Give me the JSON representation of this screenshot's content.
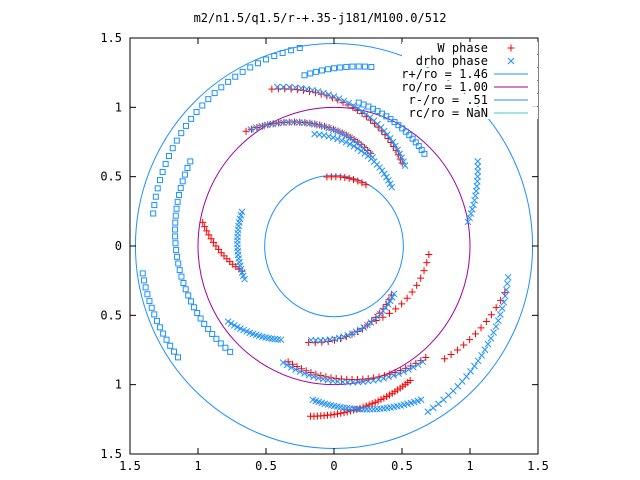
{
  "chart_data": {
    "type": "scatter",
    "title": "m2/n1.5/q1.5/r-+.35-j181/M100.0/512",
    "xlim": [
      -1.5,
      1.5
    ],
    "ylim": [
      -1.5,
      1.5
    ],
    "x_ticks": [
      -1.5,
      -1,
      -0.5,
      0,
      0.5,
      1,
      1.5
    ],
    "y_ticks": [
      -1.5,
      -1,
      -0.5,
      0,
      0.5,
      1,
      1.5
    ],
    "x_tick_labels": [
      "1.5",
      "1",
      "0.5",
      "0",
      "0.5",
      "1",
      "1.5"
    ],
    "y_tick_labels": [
      "1.5",
      "1",
      "0.5",
      "0",
      "0.5",
      "1",
      "1.5"
    ],
    "grid": false,
    "legend_position": "top-right",
    "series": [
      {
        "name": "W phase",
        "kind": "points",
        "marker": "plus",
        "color": "#ff0000",
        "spirals": [
          {
            "r0": 1.22,
            "r1": 0.78,
            "a0": 112,
            "a1": 50,
            "n": 30
          },
          {
            "r0": 1.05,
            "r1": 0.72,
            "a0": 128,
            "a1": 68,
            "n": 28
          },
          {
            "r0": 0.5,
            "r1": 0.5,
            "a0": 96,
            "a1": 62,
            "n": 10
          },
          {
            "r0": 0.98,
            "r1": 0.7,
            "a0": 170,
            "a1": 195,
            "n": 16
          },
          {
            "r0": 1.24,
            "r1": 1.12,
            "a0": 262,
            "a1": 300,
            "n": 34
          },
          {
            "r0": 0.9,
            "r1": 1.05,
            "a0": 248,
            "a1": 310,
            "n": 28
          },
          {
            "r0": 0.72,
            "r1": 0.55,
            "a0": 255,
            "a1": 320,
            "n": 18
          },
          {
            "r0": 0.62,
            "r1": 0.7,
            "a0": 300,
            "a1": 355,
            "n": 12
          },
          {
            "r0": 1.15,
            "r1": 1.3,
            "a0": 315,
            "a1": 345,
            "n": 12
          }
        ]
      },
      {
        "name": "drho phase",
        "kind": "points",
        "marker": "cross",
        "color": "#1e90ff",
        "spirals": [
          {
            "r0": 1.22,
            "r1": 0.78,
            "a0": 110,
            "a1": 48,
            "n": 32
          },
          {
            "r0": 1.04,
            "r1": 0.7,
            "a0": 126,
            "a1": 66,
            "n": 28
          },
          {
            "r0": 0.82,
            "r1": 0.6,
            "a0": 100,
            "a1": 45,
            "n": 24
          },
          {
            "r0": 0.72,
            "r1": 0.7,
            "a0": 160,
            "a1": 200,
            "n": 20
          },
          {
            "r0": 1.38,
            "r1": 1.3,
            "a0": 300,
            "a1": 350,
            "n": 26
          },
          {
            "r0": 1.12,
            "r1": 1.28,
            "a0": 262,
            "a1": 300,
            "n": 34
          },
          {
            "r0": 0.92,
            "r1": 1.06,
            "a0": 246,
            "a1": 308,
            "n": 30
          },
          {
            "r0": 0.7,
            "r1": 0.56,
            "a0": 256,
            "a1": 322,
            "n": 24
          },
          {
            "r0": 1.22,
            "r1": 1.0,
            "a0": 30,
            "a1": 10,
            "n": 14
          },
          {
            "r0": 0.95,
            "r1": 0.78,
            "a0": 215,
            "a1": 240,
            "n": 18
          }
        ]
      },
      {
        "name": "drho phase",
        "kind": "points",
        "marker": "square",
        "color": "#1e90ff",
        "in_legend": false,
        "spirals": [
          {
            "r0": 1.45,
            "r1": 1.35,
            "a0": 100,
            "a1": 170,
            "n": 28
          },
          {
            "r0": 1.22,
            "r1": 1.08,
            "a0": 150,
            "a1": 225,
            "n": 32
          },
          {
            "r0": 0.94,
            "r1": 1.05,
            "a0": 45,
            "a1": 80,
            "n": 18
          },
          {
            "r0": 1.42,
            "r1": 1.4,
            "a0": 188,
            "a1": 215,
            "n": 14
          },
          {
            "r0": 1.32,
            "r1": 1.25,
            "a0": 78,
            "a1": 100,
            "n": 12
          }
        ]
      },
      {
        "name": "r+/ro = 1.46",
        "kind": "circle",
        "r": 1.46,
        "color": "#1e90ff"
      },
      {
        "name": "ro/ro = 1.00",
        "kind": "circle",
        "r": 1.0,
        "color": "#a000a0"
      },
      {
        "name": "r-/ro = .51",
        "kind": "circle",
        "r": 0.51,
        "color": "#1e90ff"
      },
      {
        "name": "rc/ro = NaN",
        "kind": "circle",
        "r": null,
        "color": "#40c8c8"
      }
    ]
  }
}
